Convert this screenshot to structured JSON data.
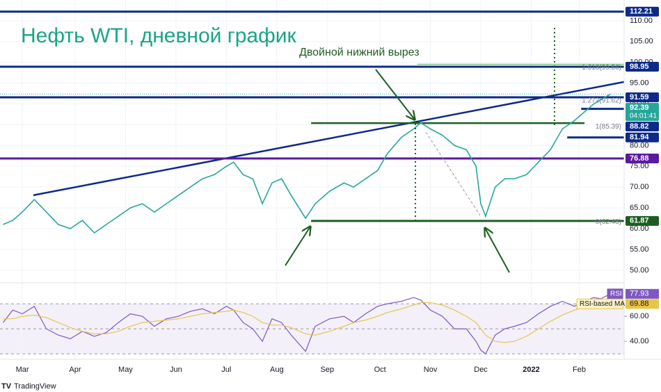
{
  "chart_data": [
    {
      "type": "line",
      "title": "Нефть WTI, дневной график",
      "annotation": "Двойной нижний вырез",
      "xlim": [
        -9.3,
        250.7
      ],
      "ylim": [
        47.3,
        115.0
      ],
      "grid": true,
      "yticks": [
        {
          "value": 50,
          "label": "50.00"
        },
        {
          "value": 55,
          "label": "55.00"
        },
        {
          "value": 60,
          "label": "60.00"
        },
        {
          "value": 65,
          "label": "65.00"
        },
        {
          "value": 70,
          "label": "70.00"
        },
        {
          "value": 75,
          "label": "75.00"
        },
        {
          "value": 80,
          "label": "80.00"
        },
        {
          "value": 85,
          "label": "85.00"
        },
        {
          "value": 90,
          "label": "90.00"
        },
        {
          "value": 95,
          "label": "95.00"
        },
        {
          "value": 100,
          "label": "100.00"
        },
        {
          "value": 105,
          "label": "105.00"
        },
        {
          "value": 110,
          "label": "110.00"
        }
      ],
      "series": [
        {
          "color": "#26a69a",
          "x": [
            -8,
            -4,
            0,
            5,
            10,
            15,
            20,
            25,
            30,
            35,
            40,
            45,
            50,
            55,
            60,
            65,
            70,
            75,
            80,
            85,
            88,
            92,
            96,
            100,
            104,
            108,
            112,
            118,
            122,
            128,
            134,
            138,
            143,
            148,
            152,
            158,
            163,
            166,
            170,
            175,
            180,
            185,
            189,
            191,
            193,
            197,
            201,
            205,
            210,
            215,
            220,
            225,
            230,
            234,
            238,
            241,
            245
          ],
          "values": [
            61,
            62,
            64,
            67,
            64,
            61,
            60,
            62,
            59,
            61,
            63,
            65,
            66,
            64,
            66,
            68,
            70,
            72,
            73,
            75,
            76,
            73,
            72,
            66,
            71,
            72,
            68,
            62.5,
            66,
            69,
            71,
            70,
            72,
            74,
            78,
            82,
            84,
            85.5,
            84,
            82.5,
            80,
            79,
            75,
            66,
            63,
            70,
            72,
            72,
            73,
            76,
            79,
            84,
            86,
            88,
            90,
            91,
            92.39
          ]
        }
      ],
      "current_price": {
        "value": 92.39,
        "countdown": "04:01:41",
        "color": "#26a69a"
      },
      "levels": [
        {
          "value": 112.21,
          "color": "#0d2a8a",
          "x": [
            -9.3,
            250.7
          ]
        },
        {
          "value": 98.95,
          "color": "#0d2a8a",
          "x": [
            -9.3,
            250.7
          ]
        },
        {
          "value": 91.59,
          "color": "#0d2a8a",
          "x": [
            -9.3,
            250.7
          ]
        },
        {
          "value": 88.82,
          "color": "#0d2a8a",
          "x": [
            232.8,
            250.7
          ]
        },
        {
          "value": 81.94,
          "color": "#0d2a8a",
          "x": [
            227,
            250.7
          ]
        },
        {
          "value": 76.88,
          "color": "#5b1a9e",
          "x": [
            -9.3,
            250.7
          ]
        },
        {
          "value": 61.87,
          "color": "#1b5e20",
          "x": [
            120.3,
            250.7
          ]
        }
      ],
      "fib_labels": [
        {
          "value": 99.56,
          "label": "1.618(99.56)"
        },
        {
          "value": 91.62,
          "label": "1.272(91.62)"
        },
        {
          "value": 85.39,
          "label": "1(85.39)"
        },
        {
          "value": 62.48,
          "label": "0(62.48)"
        }
      ],
      "lines": [
        {
          "color": "#0d2a8a",
          "x": [
            4.6,
            250.7
          ],
          "values": [
            68.05,
            95.3
          ]
        },
        {
          "color": "#1b5e20",
          "x": [
            120.3,
            234.2
          ],
          "values": [
            85.4,
            85.4
          ]
        },
        {
          "color": "#4caf50",
          "x": [
            164.5,
            250.7
          ],
          "values": [
            99.56,
            99.56
          ]
        }
      ]
    },
    {
      "type": "line",
      "xlim": [
        -9.3,
        250.7
      ],
      "ylim": [
        25.6,
        86.7
      ],
      "yticks": [
        {
          "value": 40,
          "label": "40.00"
        },
        {
          "value": 60,
          "label": "60.00"
        }
      ],
      "levels": [
        70,
        50,
        30
      ],
      "xticks": [
        {
          "value": 0,
          "label": "Mar"
        },
        {
          "value": 22,
          "label": "Apr"
        },
        {
          "value": 43,
          "label": "May"
        },
        {
          "value": 64,
          "label": "Jun"
        },
        {
          "value": 85,
          "label": "Jul"
        },
        {
          "value": 106,
          "label": "Aug"
        },
        {
          "value": 127,
          "label": "Sep"
        },
        {
          "value": 149,
          "label": "Oct"
        },
        {
          "value": 170,
          "label": "Nov"
        },
        {
          "value": 191,
          "label": "Dec"
        },
        {
          "value": 212,
          "label": "2022"
        },
        {
          "value": 232,
          "label": "Feb"
        }
      ],
      "series": [
        {
          "name": "RSI",
          "color": "#7e57c2",
          "last": 77.93,
          "x": [
            -8,
            -4,
            0,
            5,
            10,
            15,
            20,
            25,
            30,
            35,
            40,
            45,
            50,
            55,
            60,
            65,
            70,
            75,
            80,
            85,
            88,
            92,
            96,
            100,
            104,
            108,
            112,
            118,
            122,
            128,
            134,
            138,
            143,
            148,
            152,
            158,
            163,
            166,
            170,
            175,
            180,
            185,
            189,
            191,
            193,
            197,
            201,
            205,
            210,
            215,
            220,
            225,
            230,
            234,
            238,
            241,
            245
          ],
          "values": [
            55,
            65,
            62,
            68,
            50,
            45,
            42,
            48,
            44,
            47,
            55,
            62,
            60,
            52,
            58,
            60,
            64,
            66,
            62,
            68,
            65,
            55,
            50,
            40,
            58,
            55,
            45,
            32,
            52,
            58,
            60,
            55,
            62,
            68,
            70,
            72,
            75,
            73,
            65,
            60,
            50,
            50,
            40,
            33,
            30,
            45,
            50,
            52,
            55,
            62,
            68,
            72,
            68,
            72,
            75,
            74,
            77.93
          ]
        },
        {
          "name": "RSI-based MA",
          "color": "#e8c547",
          "last": 69.88,
          "x": [
            -8,
            -4,
            0,
            5,
            10,
            15,
            20,
            25,
            30,
            35,
            40,
            45,
            50,
            55,
            60,
            65,
            70,
            75,
            80,
            85,
            88,
            92,
            96,
            100,
            104,
            108,
            112,
            118,
            122,
            128,
            134,
            138,
            143,
            148,
            152,
            158,
            163,
            166,
            170,
            175,
            180,
            185,
            189,
            191,
            193,
            197,
            201,
            205,
            210,
            215,
            220,
            225,
            230,
            234,
            238,
            241,
            245
          ],
          "values": [
            58,
            58,
            60,
            61,
            59,
            55,
            51,
            48,
            46,
            46,
            48,
            52,
            55,
            56,
            57,
            58,
            60,
            62,
            63,
            64,
            65,
            63,
            60,
            55,
            53,
            53,
            51,
            46,
            45,
            48,
            52,
            55,
            57,
            60,
            63,
            66,
            69,
            71,
            71,
            69,
            65,
            60,
            55,
            50,
            45,
            40,
            39,
            40,
            44,
            50,
            56,
            61,
            65,
            67,
            69,
            69.5,
            69.88
          ]
        }
      ]
    }
  ],
  "brand": "TradingView"
}
